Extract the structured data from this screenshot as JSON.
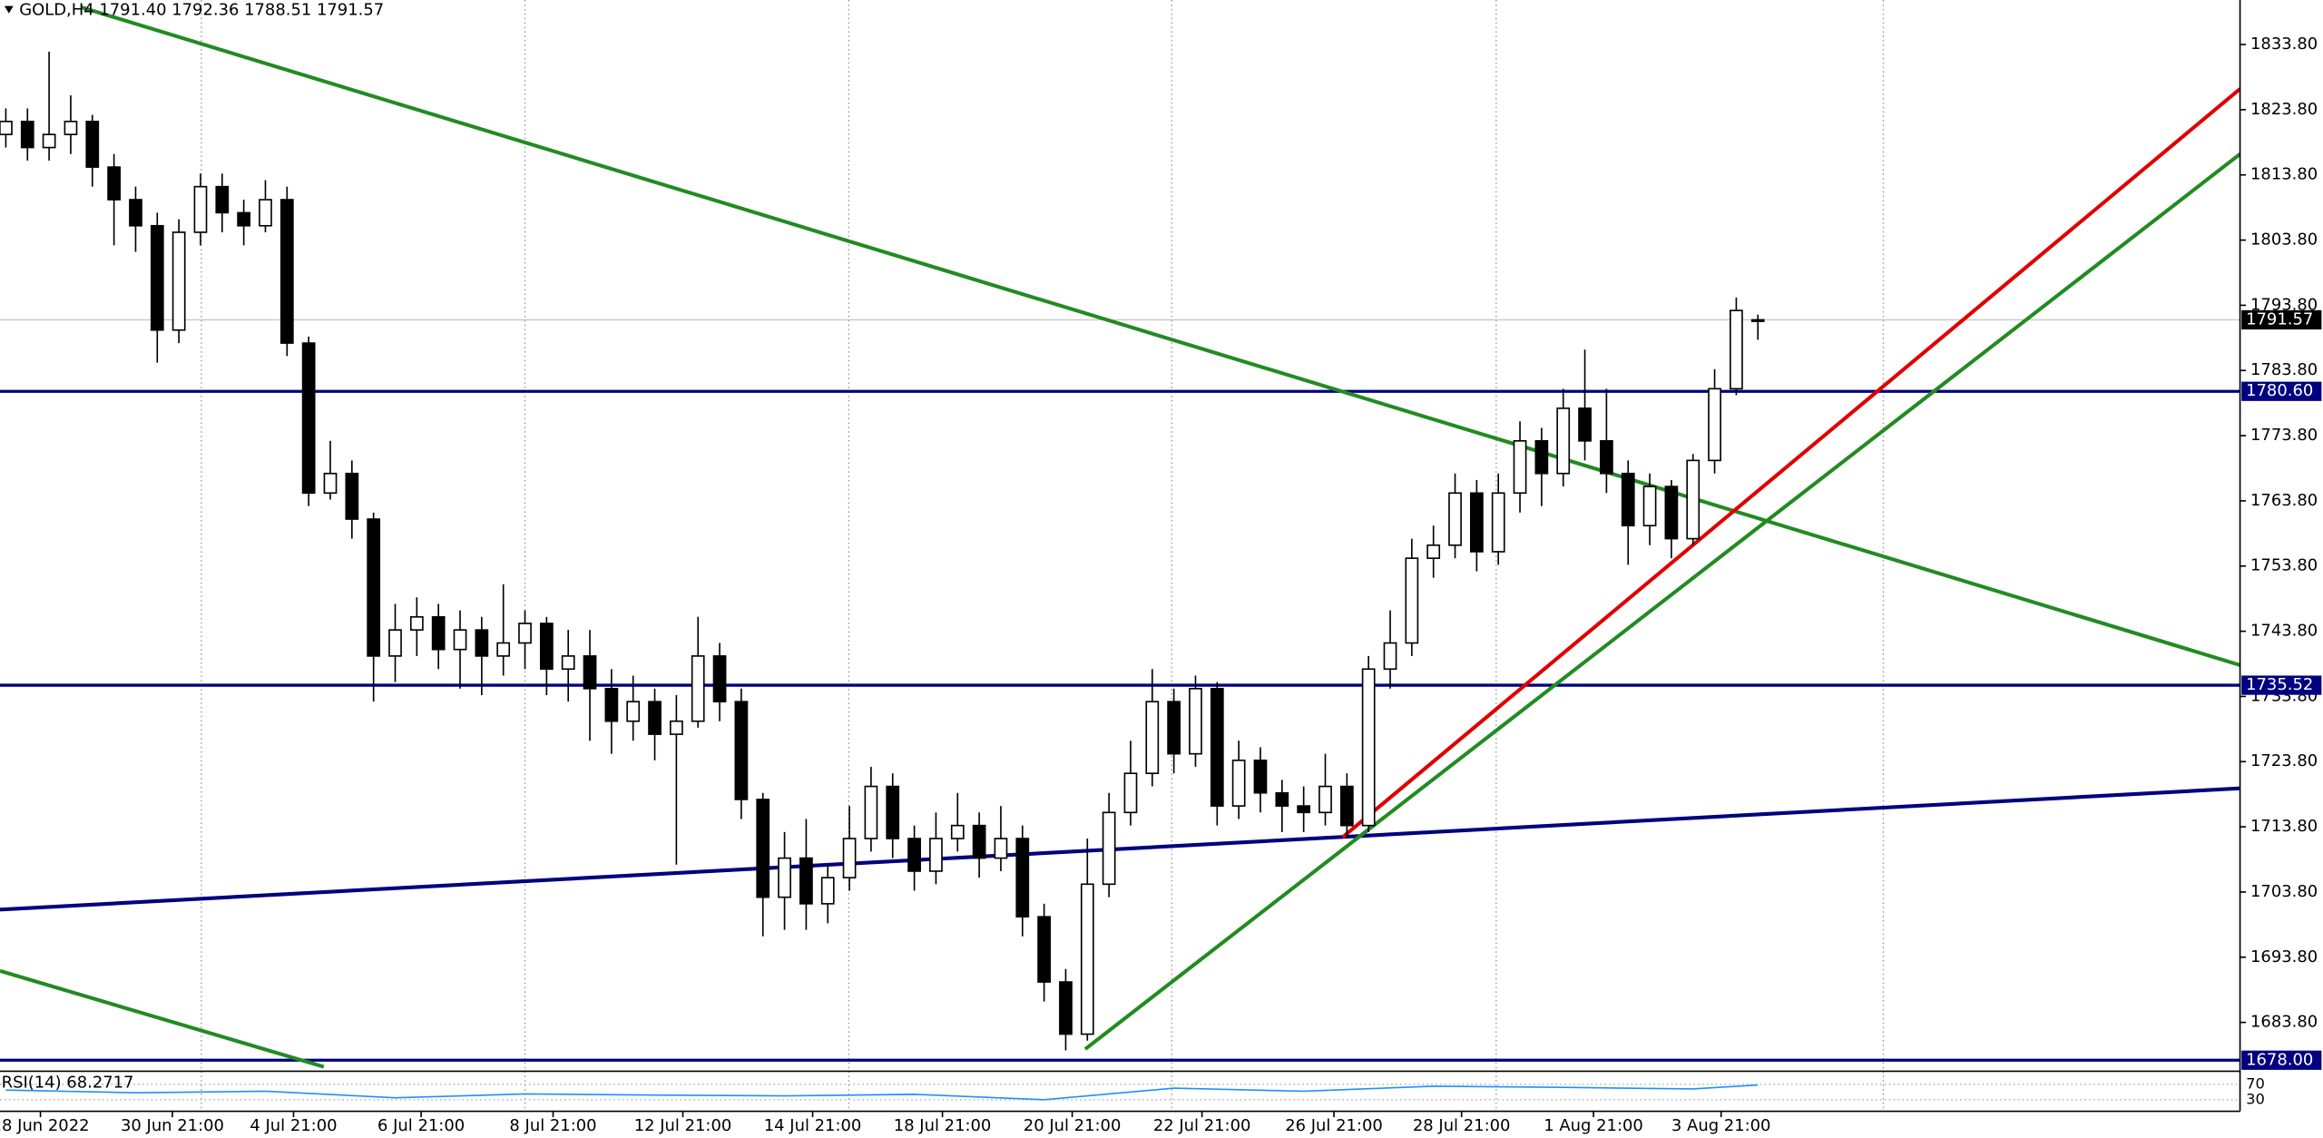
{
  "chart_data": {
    "type": "candlestick",
    "header": "GOLD,H4  1791.40 1792.36 1788.51 1791.57",
    "candles": [
      [
        1820,
        1824,
        1818,
        1822
      ],
      [
        1822,
        1824,
        1816,
        1818
      ],
      [
        1818,
        1832.7,
        1816,
        1820
      ],
      [
        1820,
        1826,
        1817,
        1822
      ],
      [
        1822,
        1823,
        1812,
        1815
      ],
      [
        1815,
        1817,
        1803,
        1810
      ],
      [
        1810,
        1812,
        1802,
        1806
      ],
      [
        1806,
        1808,
        1785,
        1790
      ],
      [
        1790,
        1807,
        1788,
        1805
      ],
      [
        1805,
        1814,
        1803,
        1812
      ],
      [
        1812,
        1814,
        1805,
        1808
      ],
      [
        1808,
        1810,
        1803,
        1806
      ],
      [
        1806,
        1813,
        1805,
        1810
      ],
      [
        1810,
        1812,
        1786,
        1788
      ],
      [
        1788,
        1789,
        1763,
        1765
      ],
      [
        1765,
        1773,
        1764,
        1768
      ],
      [
        1768,
        1770,
        1758,
        1761
      ],
      [
        1761,
        1762,
        1733,
        1740
      ],
      [
        1740,
        1748,
        1736,
        1744
      ],
      [
        1744,
        1749,
        1740,
        1746
      ],
      [
        1746,
        1748,
        1738,
        1741
      ],
      [
        1741,
        1747,
        1735,
        1744
      ],
      [
        1744,
        1746,
        1734,
        1740
      ],
      [
        1740,
        1751,
        1737,
        1742
      ],
      [
        1742,
        1747,
        1738,
        1745
      ],
      [
        1745,
        1746,
        1734,
        1738
      ],
      [
        1738,
        1744,
        1733,
        1740
      ],
      [
        1740,
        1744,
        1727,
        1735
      ],
      [
        1735,
        1738,
        1725,
        1730
      ],
      [
        1730,
        1737,
        1727,
        1733
      ],
      [
        1733,
        1735,
        1724,
        1728
      ],
      [
        1728,
        1734,
        1708,
        1730
      ],
      [
        1730,
        1746,
        1729,
        1740
      ],
      [
        1740,
        1742,
        1730,
        1733
      ],
      [
        1733,
        1735,
        1715,
        1718
      ],
      [
        1718,
        1719,
        1697,
        1703
      ],
      [
        1703,
        1713,
        1698,
        1709
      ],
      [
        1709,
        1715,
        1698,
        1702
      ],
      [
        1702,
        1708,
        1699,
        1706
      ],
      [
        1706,
        1717,
        1704,
        1712
      ],
      [
        1712,
        1723,
        1710,
        1720
      ],
      [
        1720,
        1722,
        1709,
        1712
      ],
      [
        1712,
        1714,
        1704,
        1707
      ],
      [
        1707,
        1716,
        1705,
        1712
      ],
      [
        1712,
        1719,
        1710,
        1714
      ],
      [
        1714,
        1716,
        1706,
        1709
      ],
      [
        1709,
        1717,
        1707,
        1712
      ],
      [
        1712,
        1714,
        1697,
        1700
      ],
      [
        1700,
        1702,
        1687,
        1690
      ],
      [
        1690,
        1692,
        1679.5,
        1682
      ],
      [
        1682,
        1712,
        1681,
        1705
      ],
      [
        1705,
        1719,
        1703,
        1716
      ],
      [
        1716,
        1727,
        1714,
        1722
      ],
      [
        1722,
        1738,
        1720,
        1733
      ],
      [
        1733,
        1735,
        1722,
        1725
      ],
      [
        1725,
        1737,
        1723,
        1735
      ],
      [
        1735,
        1736,
        1714,
        1717
      ],
      [
        1717,
        1727,
        1715,
        1724
      ],
      [
        1724,
        1726,
        1716,
        1719
      ],
      [
        1719,
        1721,
        1713,
        1717
      ],
      [
        1717,
        1720,
        1713,
        1716
      ],
      [
        1716,
        1725,
        1714,
        1720
      ],
      [
        1720,
        1722,
        1712,
        1714
      ],
      [
        1714,
        1740,
        1713,
        1738
      ],
      [
        1738,
        1747,
        1735,
        1742
      ],
      [
        1742,
        1758,
        1740,
        1755
      ],
      [
        1755,
        1760,
        1752,
        1757
      ],
      [
        1757,
        1768,
        1755,
        1765
      ],
      [
        1765,
        1767,
        1753,
        1756
      ],
      [
        1756,
        1768,
        1754,
        1765
      ],
      [
        1765,
        1776,
        1762,
        1773
      ],
      [
        1773,
        1775,
        1763,
        1768
      ],
      [
        1768,
        1781,
        1766,
        1778
      ],
      [
        1778,
        1787,
        1770,
        1773
      ],
      [
        1773,
        1781,
        1765,
        1768
      ],
      [
        1768,
        1770,
        1754,
        1760
      ],
      [
        1760,
        1768,
        1757,
        1766
      ],
      [
        1766,
        1767,
        1755,
        1758
      ],
      [
        1758,
        1771,
        1757,
        1770
      ],
      [
        1770,
        1784,
        1768,
        1781
      ],
      [
        1781,
        1795,
        1780,
        1793
      ],
      [
        1791.4,
        1792.36,
        1788.51,
        1791.57
      ]
    ],
    "xlim": [
      -0.27,
      103.29
    ],
    "ylim": [
      1676.53,
      1840.62
    ],
    "yticks": [
      {
        "value": 1683.8,
        "label": "1683.80"
      },
      {
        "value": 1693.8,
        "label": "1693.80"
      },
      {
        "value": 1703.8,
        "label": "1703.80"
      },
      {
        "value": 1713.8,
        "label": "1713.80"
      },
      {
        "value": 1723.8,
        "label": "1723.80"
      },
      {
        "value": 1733.8,
        "label": "1733.80"
      },
      {
        "value": 1743.8,
        "label": "1743.80"
      },
      {
        "value": 1753.8,
        "label": "1753.80"
      },
      {
        "value": 1763.8,
        "label": "1763.80"
      },
      {
        "value": 1773.8,
        "label": "1773.80"
      },
      {
        "value": 1783.8,
        "label": "1783.80"
      },
      {
        "value": 1793.8,
        "label": "1793.80"
      },
      {
        "value": 1803.8,
        "label": "1803.80"
      },
      {
        "value": 1813.8,
        "label": "1813.80"
      },
      {
        "value": 1823.8,
        "label": "1823.80"
      },
      {
        "value": 1833.8,
        "label": "1833.80"
      }
    ],
    "xticks": [
      {
        "value": 1.6,
        "label": "28 Jun 2022"
      },
      {
        "value": 7.7,
        "label": "30 Jun 21:00"
      },
      {
        "value": 13.3,
        "label": "4 Jul 21:00"
      },
      {
        "value": 19.2,
        "label": "6 Jul 21:00"
      },
      {
        "value": 25.3,
        "label": "8 Jul 21:00"
      },
      {
        "value": 31.3,
        "label": "12 Jul 21:00"
      },
      {
        "value": 37.3,
        "label": "14 Jul 21:00"
      },
      {
        "value": 43.3,
        "label": "18 Jul 21:00"
      },
      {
        "value": 49.3,
        "label": "20 Jul 21:00"
      },
      {
        "value": 55.3,
        "label": "22 Jul 21:00"
      },
      {
        "value": 61.4,
        "label": "26 Jul 21:00"
      },
      {
        "value": 67.3,
        "label": "28 Jul 21:00"
      },
      {
        "value": 73.4,
        "label": "1 Aug 21:00"
      },
      {
        "value": 79.3,
        "label": "3 Aug 21:00"
      }
    ],
    "xgrid": [
      9.04,
      24.0,
      38.97,
      53.9,
      68.9,
      86.8
    ],
    "current_price": {
      "value": 1791.57,
      "color": "#000000"
    },
    "levels": [
      {
        "value": 1780.6,
        "label": "1780.60",
        "color": "#000080"
      },
      {
        "value": 1735.52,
        "label": "1735.52",
        "color": "#000080"
      },
      {
        "value": 1678,
        "label": "1678.00",
        "color": "#000080"
      }
    ],
    "trendlines": [
      {
        "color": "#228b22",
        "x": [
          3.5,
          103.29
        ],
        "y": [
          1839.5,
          1738.6
        ]
      },
      {
        "color": "#228b22",
        "x": [
          -0.27,
          14.7
        ],
        "y": [
          1691.7,
          1676.99
        ]
      },
      {
        "color": "#000080",
        "x": [
          -0.27,
          103.29
        ],
        "y": [
          1701.1,
          1719.7
        ]
      },
      {
        "color": "#e00000",
        "x": [
          61.8,
          103.29
        ],
        "y": [
          1712.2,
          1827.0
        ]
      },
      {
        "color": "#228b22",
        "x": [
          49.9,
          103.29
        ],
        "y": [
          1679.7,
          1817.0
        ]
      }
    ],
    "rsi": {
      "label": "RSI(14) 68.2717",
      "color": "#1e90ff",
      "ylim": [
        0,
        100
      ],
      "yticks": [
        70,
        30
      ],
      "x": [
        0,
        6,
        12,
        18,
        24,
        30,
        36,
        42,
        48,
        54,
        60,
        66,
        72,
        78,
        81
      ],
      "values": [
        55,
        48,
        52,
        35,
        45,
        42,
        40,
        44,
        30,
        60,
        52,
        65,
        62,
        58,
        68.2717
      ]
    }
  }
}
